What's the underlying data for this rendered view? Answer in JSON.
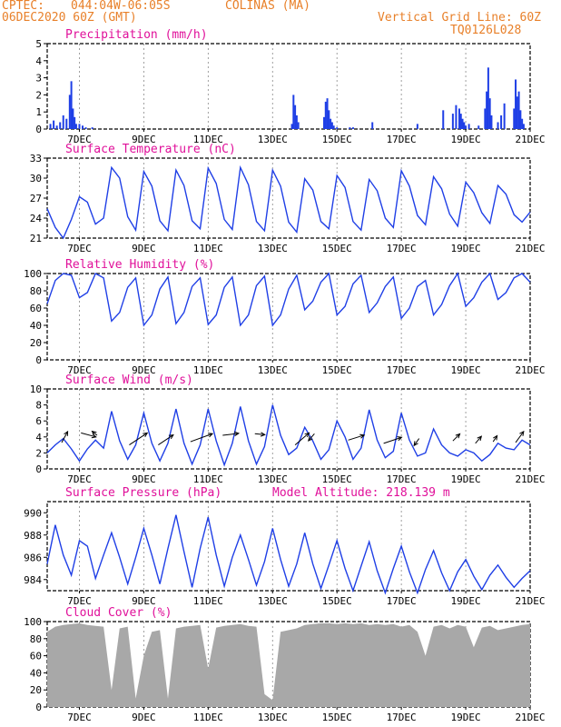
{
  "header": {
    "source": "CPTEC:",
    "coords": "044:04W-06:05S",
    "location": "COLINAS (MA)",
    "date": "06DEC2020 60Z (GMT)",
    "grid_line": "Vertical Grid Line: 60Z",
    "model": "TQ0126L028"
  },
  "x_ticks": [
    "7DEC",
    "9DEC",
    "11DEC",
    "13DEC",
    "15DEC",
    "17DEC",
    "19DEC",
    "21DEC"
  ],
  "model_altitude": "Model Altitude: 218.139 m",
  "colors": {
    "line": "#1f3fe6",
    "bar": "#1f3fe6",
    "cloud": "#a8a8a8",
    "title": "#e0109a",
    "header": "#e8802a"
  },
  "chart_data": [
    {
      "type": "bar",
      "title": "Precipitation (mm/h)",
      "ylim": [
        0,
        5
      ],
      "yticks": [
        0,
        1,
        2,
        3,
        4,
        5
      ],
      "x_range_days": [
        6.0,
        21.0
      ],
      "series": [
        {
          "x": [
            6.1,
            6.2,
            6.3,
            6.4,
            6.5,
            6.6,
            6.7,
            6.75,
            6.8,
            6.85,
            6.9,
            7.0,
            7.1,
            7.2,
            7.4,
            13.6,
            13.65,
            13.7,
            13.75,
            13.8,
            14.6,
            14.65,
            14.7,
            14.75,
            14.8,
            14.85,
            14.9,
            15.0,
            15.4,
            15.5,
            16.1,
            17.5,
            18.3,
            18.6,
            18.7,
            18.8,
            18.85,
            18.9,
            18.95,
            19.0,
            19.1,
            19.4,
            19.6,
            19.65,
            19.7,
            19.75,
            19.8,
            20.0,
            20.1,
            20.2,
            20.5,
            20.55,
            20.6,
            20.65,
            20.7,
            20.75,
            20.8
          ],
          "values": [
            0.3,
            0.5,
            0.2,
            0.4,
            0.8,
            0.6,
            2.0,
            2.8,
            1.2,
            0.7,
            0.3,
            0.3,
            0.2,
            0.1,
            0.1,
            0.3,
            2.0,
            1.4,
            0.8,
            0.4,
            0.7,
            1.6,
            1.8,
            1.1,
            0.6,
            0.4,
            0.2,
            0.1,
            0.1,
            0.1,
            0.4,
            0.3,
            1.1,
            0.9,
            1.4,
            1.2,
            0.9,
            0.6,
            0.4,
            0.2,
            0.3,
            0.2,
            1.2,
            2.2,
            3.6,
            1.8,
            0.8,
            0.4,
            0.8,
            1.5,
            1.2,
            2.9,
            1.9,
            2.2,
            1.1,
            0.6,
            0.3
          ]
        }
      ]
    },
    {
      "type": "line",
      "title": "Surface Temperature (nC)",
      "ylim": [
        21,
        33
      ],
      "yticks": [
        21,
        24,
        27,
        30,
        33
      ],
      "series": [
        {
          "x": [
            6.0,
            6.25,
            6.5,
            6.75,
            7.0,
            7.25,
            7.5,
            7.75,
            8.0,
            8.25,
            8.5,
            8.75,
            9.0,
            9.25,
            9.5,
            9.75,
            10.0,
            10.25,
            10.5,
            10.75,
            11.0,
            11.25,
            11.5,
            11.75,
            12.0,
            12.25,
            12.5,
            12.75,
            13.0,
            13.25,
            13.5,
            13.75,
            14.0,
            14.25,
            14.5,
            14.75,
            15.0,
            15.25,
            15.5,
            15.75,
            16.0,
            16.25,
            16.5,
            16.75,
            17.0,
            17.25,
            17.5,
            17.75,
            18.0,
            18.25,
            18.5,
            18.75,
            19.0,
            19.25,
            19.5,
            19.75,
            20.0,
            20.25,
            20.5,
            20.75,
            21.0
          ],
          "values": [
            25.4,
            22.6,
            21.0,
            23.8,
            27.2,
            26.4,
            23.1,
            24.0,
            31.6,
            30.0,
            24.2,
            22.2,
            31.0,
            28.8,
            23.6,
            22.1,
            31.2,
            28.9,
            23.6,
            22.4,
            31.5,
            29.2,
            23.8,
            22.3,
            31.6,
            29.0,
            23.5,
            22.1,
            31.2,
            28.8,
            23.4,
            21.9,
            29.9,
            28.2,
            23.5,
            22.4,
            30.4,
            28.6,
            23.5,
            22.2,
            29.8,
            28.1,
            24.0,
            22.6,
            31.1,
            28.8,
            24.4,
            23.0,
            30.2,
            28.4,
            24.6,
            22.8,
            29.4,
            27.8,
            24.8,
            23.2,
            28.9,
            27.6,
            24.5,
            23.4,
            24.9
          ]
        }
      ]
    },
    {
      "type": "line",
      "title": "Relative Humidity (%)",
      "ylim": [
        0,
        100
      ],
      "yticks": [
        0,
        20,
        40,
        60,
        80,
        100
      ],
      "series": [
        {
          "x": [
            6.0,
            6.25,
            6.5,
            6.75,
            7.0,
            7.25,
            7.5,
            7.75,
            8.0,
            8.25,
            8.5,
            8.75,
            9.0,
            9.25,
            9.5,
            9.75,
            10.0,
            10.25,
            10.5,
            10.75,
            11.0,
            11.25,
            11.5,
            11.75,
            12.0,
            12.25,
            12.5,
            12.75,
            13.0,
            13.25,
            13.5,
            13.75,
            14.0,
            14.25,
            14.5,
            14.75,
            15.0,
            15.25,
            15.5,
            15.75,
            16.0,
            16.25,
            16.5,
            16.75,
            17.0,
            17.25,
            17.5,
            17.75,
            18.0,
            18.25,
            18.5,
            18.75,
            19.0,
            19.25,
            19.5,
            19.75,
            20.0,
            20.25,
            20.5,
            20.75,
            21.0
          ],
          "values": [
            65,
            92,
            100,
            98,
            72,
            78,
            100,
            95,
            45,
            55,
            84,
            95,
            40,
            52,
            82,
            96,
            42,
            55,
            85,
            95,
            41,
            52,
            84,
            96,
            40,
            52,
            86,
            97,
            40,
            52,
            82,
            98,
            58,
            68,
            90,
            100,
            52,
            62,
            88,
            98,
            55,
            66,
            85,
            96,
            48,
            60,
            85,
            92,
            52,
            64,
            86,
            100,
            62,
            72,
            90,
            100,
            70,
            78,
            95,
            100,
            90
          ]
        }
      ]
    },
    {
      "type": "line",
      "title": "Surface Wind (m/s)",
      "ylim": [
        0,
        10
      ],
      "yticks": [
        0,
        2,
        4,
        6,
        8,
        10
      ],
      "series": [
        {
          "x": [
            6.0,
            6.25,
            6.5,
            6.75,
            7.0,
            7.25,
            7.5,
            7.75,
            8.0,
            8.25,
            8.5,
            8.75,
            9.0,
            9.25,
            9.5,
            9.75,
            10.0,
            10.25,
            10.5,
            10.75,
            11.0,
            11.25,
            11.5,
            11.75,
            12.0,
            12.25,
            12.5,
            12.75,
            13.0,
            13.25,
            13.5,
            13.75,
            14.0,
            14.25,
            14.5,
            14.75,
            15.0,
            15.25,
            15.5,
            15.75,
            16.0,
            16.25,
            16.5,
            16.75,
            17.0,
            17.25,
            17.5,
            17.75,
            18.0,
            18.25,
            18.5,
            18.75,
            19.0,
            19.25,
            19.5,
            19.75,
            20.0,
            20.25,
            20.5,
            20.75,
            21.0
          ],
          "values": [
            2.0,
            3.0,
            3.8,
            2.5,
            1.0,
            2.5,
            3.6,
            2.6,
            7.2,
            3.5,
            1.2,
            3.0,
            7.0,
            3.2,
            1.0,
            3.2,
            7.5,
            3.2,
            0.6,
            3.0,
            7.5,
            3.5,
            0.5,
            3.2,
            7.8,
            3.5,
            0.6,
            2.8,
            8.0,
            4.2,
            1.8,
            2.6,
            5.2,
            3.5,
            1.2,
            2.4,
            6.0,
            4.0,
            1.2,
            2.6,
            7.4,
            3.6,
            1.4,
            2.2,
            7.0,
            3.6,
            1.6,
            2.0,
            5.0,
            3.0,
            2.0,
            1.6,
            2.4,
            2.0,
            1.0,
            1.8,
            3.2,
            2.6,
            2.4,
            3.6,
            3.0
          ]
        }
      ],
      "vectors": [
        {
          "x": 6.45,
          "y": 3.3,
          "u": 1.2,
          "v": 2.2
        },
        {
          "x": 7.05,
          "y": 4.5,
          "u": 3.0,
          "v": -0.8
        },
        {
          "x": 7.55,
          "y": 4.2,
          "u": -1.0,
          "v": 0.8
        },
        {
          "x": 8.55,
          "y": 3.0,
          "u": 3.6,
          "v": 2.4
        },
        {
          "x": 9.45,
          "y": 3.0,
          "u": 3.0,
          "v": 2.0
        },
        {
          "x": 10.45,
          "y": 3.4,
          "u": 4.4,
          "v": 1.6
        },
        {
          "x": 11.45,
          "y": 4.2,
          "u": 3.2,
          "v": 0.4
        },
        {
          "x": 12.45,
          "y": 4.4,
          "u": 2.0,
          "v": -0.2
        },
        {
          "x": 13.7,
          "y": 3.0,
          "u": 2.8,
          "v": 2.4
        },
        {
          "x": 14.3,
          "y": 4.4,
          "u": -1.2,
          "v": -1.4
        },
        {
          "x": 15.35,
          "y": 3.6,
          "u": 3.2,
          "v": 1.0
        },
        {
          "x": 16.45,
          "y": 3.2,
          "u": 3.6,
          "v": 1.2
        },
        {
          "x": 17.55,
          "y": 3.8,
          "u": -1.0,
          "v": -1.4
        },
        {
          "x": 18.6,
          "y": 3.5,
          "u": 1.4,
          "v": 1.4
        },
        {
          "x": 19.3,
          "y": 3.2,
          "u": 1.2,
          "v": 1.4
        },
        {
          "x": 19.85,
          "y": 3.4,
          "u": 0.8,
          "v": 1.2
        },
        {
          "x": 20.55,
          "y": 3.3,
          "u": 1.6,
          "v": 2.2
        }
      ]
    },
    {
      "type": "line",
      "title": "Surface Pressure (hPa)",
      "ylim": [
        983,
        991
      ],
      "yticks": [
        984,
        986,
        988,
        990
      ],
      "series": [
        {
          "x": [
            6.0,
            6.25,
            6.5,
            6.75,
            7.0,
            7.25,
            7.5,
            7.75,
            8.0,
            8.25,
            8.5,
            8.75,
            9.0,
            9.25,
            9.5,
            9.75,
            10.0,
            10.25,
            10.5,
            10.75,
            11.0,
            11.25,
            11.5,
            11.75,
            12.0,
            12.25,
            12.5,
            12.75,
            13.0,
            13.25,
            13.5,
            13.75,
            14.0,
            14.25,
            14.5,
            14.75,
            15.0,
            15.25,
            15.5,
            15.75,
            16.0,
            16.25,
            16.5,
            16.75,
            17.0,
            17.25,
            17.5,
            17.75,
            18.0,
            18.25,
            18.5,
            18.75,
            19.0,
            19.25,
            19.5,
            19.75,
            20.0,
            20.25,
            20.5,
            20.75,
            21.0
          ],
          "values": [
            985.4,
            988.9,
            986.2,
            984.4,
            987.5,
            987.0,
            984.1,
            986.2,
            988.2,
            986.0,
            983.6,
            986.0,
            988.6,
            986.2,
            983.6,
            986.8,
            989.8,
            986.5,
            983.3,
            986.8,
            989.6,
            986.2,
            983.4,
            986.0,
            988.0,
            985.8,
            983.5,
            985.6,
            988.6,
            985.8,
            983.4,
            985.4,
            988.2,
            985.4,
            983.2,
            985.3,
            987.5,
            985.0,
            983.0,
            985.2,
            987.4,
            984.8,
            982.8,
            985.0,
            987.0,
            984.7,
            982.8,
            984.9,
            986.6,
            984.6,
            983.0,
            984.7,
            985.8,
            984.3,
            983.1,
            984.4,
            985.3,
            984.2,
            983.3,
            984.1,
            984.8
          ]
        }
      ]
    },
    {
      "type": "area",
      "title": "Cloud Cover (%)",
      "ylim": [
        0,
        100
      ],
      "yticks": [
        0,
        20,
        40,
        60,
        80,
        100
      ],
      "series": [
        {
          "x": [
            6.0,
            6.25,
            6.5,
            6.75,
            7.0,
            7.25,
            7.5,
            7.75,
            8.0,
            8.25,
            8.5,
            8.75,
            9.0,
            9.25,
            9.5,
            9.75,
            10.0,
            10.25,
            10.5,
            10.75,
            11.0,
            11.25,
            11.5,
            11.75,
            12.0,
            12.25,
            12.5,
            12.75,
            13.0,
            13.25,
            13.5,
            13.75,
            14.0,
            14.25,
            14.5,
            14.75,
            15.0,
            15.25,
            15.5,
            15.75,
            16.0,
            16.25,
            16.5,
            16.75,
            17.0,
            17.25,
            17.5,
            17.75,
            18.0,
            18.25,
            18.5,
            18.75,
            19.0,
            19.25,
            19.5,
            19.75,
            20.0,
            20.25,
            20.5,
            20.75,
            21.0
          ],
          "values": [
            88,
            94,
            96,
            97,
            98,
            96,
            95,
            94,
            20,
            92,
            94,
            10,
            60,
            88,
            90,
            10,
            92,
            94,
            95,
            96,
            45,
            93,
            95,
            96,
            97,
            95,
            94,
            15,
            8,
            88,
            90,
            92,
            96,
            97,
            98,
            98,
            97,
            98,
            97,
            98,
            96,
            97,
            96,
            97,
            94,
            96,
            88,
            60,
            94,
            96,
            92,
            96,
            94,
            70,
            93,
            95,
            90,
            92,
            94,
            96,
            97
          ]
        }
      ]
    }
  ]
}
